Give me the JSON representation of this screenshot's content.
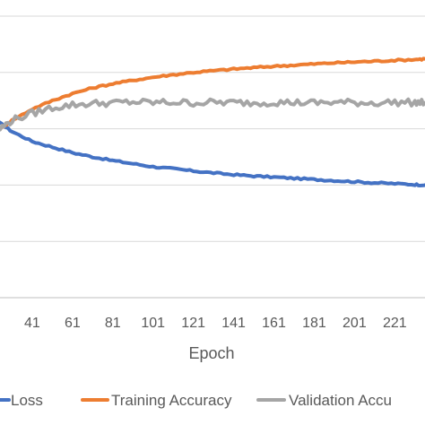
{
  "chart_data": {
    "type": "line",
    "xlabel": "Epoch",
    "ylabel": "",
    "title": "",
    "x_ticks": [
      "41",
      "61",
      "81",
      "101",
      "121",
      "141",
      "161",
      "181",
      "201",
      "221"
    ],
    "xlim": [
      25,
      236
    ],
    "ylim": [
      0,
      1
    ],
    "grid": true,
    "legend_position": "bottom",
    "series": [
      {
        "name": "Loss",
        "color": "#4472C4",
        "x": [
          25,
          31,
          41,
          51,
          61,
          71,
          81,
          91,
          101,
          111,
          121,
          131,
          141,
          151,
          161,
          171,
          181,
          191,
          201,
          211,
          221,
          231,
          236
        ],
        "y": [
          0.62,
          0.59,
          0.555,
          0.535,
          0.515,
          0.5,
          0.487,
          0.476,
          0.465,
          0.458,
          0.45,
          0.443,
          0.437,
          0.432,
          0.428,
          0.424,
          0.42,
          0.416,
          0.412,
          0.408,
          0.405,
          0.402,
          0.4
        ]
      },
      {
        "name": "Training Accuracy",
        "color": "#ED7D31",
        "x": [
          25,
          31,
          41,
          51,
          61,
          71,
          81,
          91,
          101,
          111,
          121,
          131,
          141,
          151,
          161,
          171,
          181,
          191,
          201,
          211,
          221,
          231,
          236
        ],
        "y": [
          0.6,
          0.63,
          0.67,
          0.7,
          0.725,
          0.745,
          0.76,
          0.772,
          0.783,
          0.792,
          0.8,
          0.806,
          0.812,
          0.817,
          0.822,
          0.826,
          0.83,
          0.834,
          0.837,
          0.84,
          0.843,
          0.846,
          0.848
        ]
      },
      {
        "name": "Validation Accuracy",
        "color": "#A5A5A5",
        "x": [
          25,
          31,
          41,
          51,
          61,
          71,
          81,
          91,
          101,
          111,
          121,
          131,
          141,
          151,
          161,
          171,
          181,
          191,
          201,
          211,
          221,
          231,
          236
        ],
        "y": [
          0.6,
          0.63,
          0.655,
          0.675,
          0.685,
          0.69,
          0.692,
          0.695,
          0.693,
          0.694,
          0.692,
          0.694,
          0.693,
          0.692,
          0.694,
          0.693,
          0.692,
          0.694,
          0.693,
          0.692,
          0.694,
          0.693,
          0.692
        ]
      }
    ],
    "legend": [
      {
        "label": "Loss",
        "color": "#4472C4"
      },
      {
        "label": "Training Accuracy",
        "color": "#ED7D31"
      },
      {
        "label": "Validation Accu",
        "color": "#A5A5A5"
      }
    ]
  }
}
